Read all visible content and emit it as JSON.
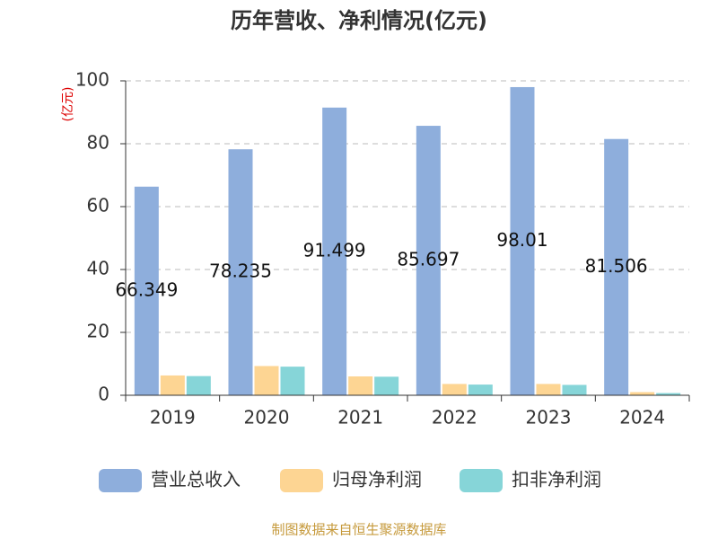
{
  "chart_data": {
    "type": "bar",
    "title": "历年营收、净利情况(亿元)",
    "y_axis_label": "(亿元)",
    "categories": [
      "2019",
      "2020",
      "2021",
      "2022",
      "2023",
      "2024"
    ],
    "series": [
      {
        "name": "营业总收入",
        "color": "#8eaedc",
        "values": [
          66.349,
          78.235,
          91.499,
          85.697,
          98.01,
          81.506
        ]
      },
      {
        "name": "归母净利润",
        "color": "#fdd593",
        "values": [
          6.3,
          9.3,
          6.0,
          3.6,
          3.6,
          1.0
        ]
      },
      {
        "name": "扣非净利润",
        "color": "#86d5d8",
        "values": [
          6.1,
          9.1,
          5.9,
          3.4,
          3.3,
          0.7
        ]
      }
    ],
    "ylim": [
      0,
      100
    ],
    "yticks": [
      0,
      20,
      40,
      60,
      80,
      100
    ],
    "grid": true,
    "source": "制图数据来自恒生聚源数据库"
  }
}
